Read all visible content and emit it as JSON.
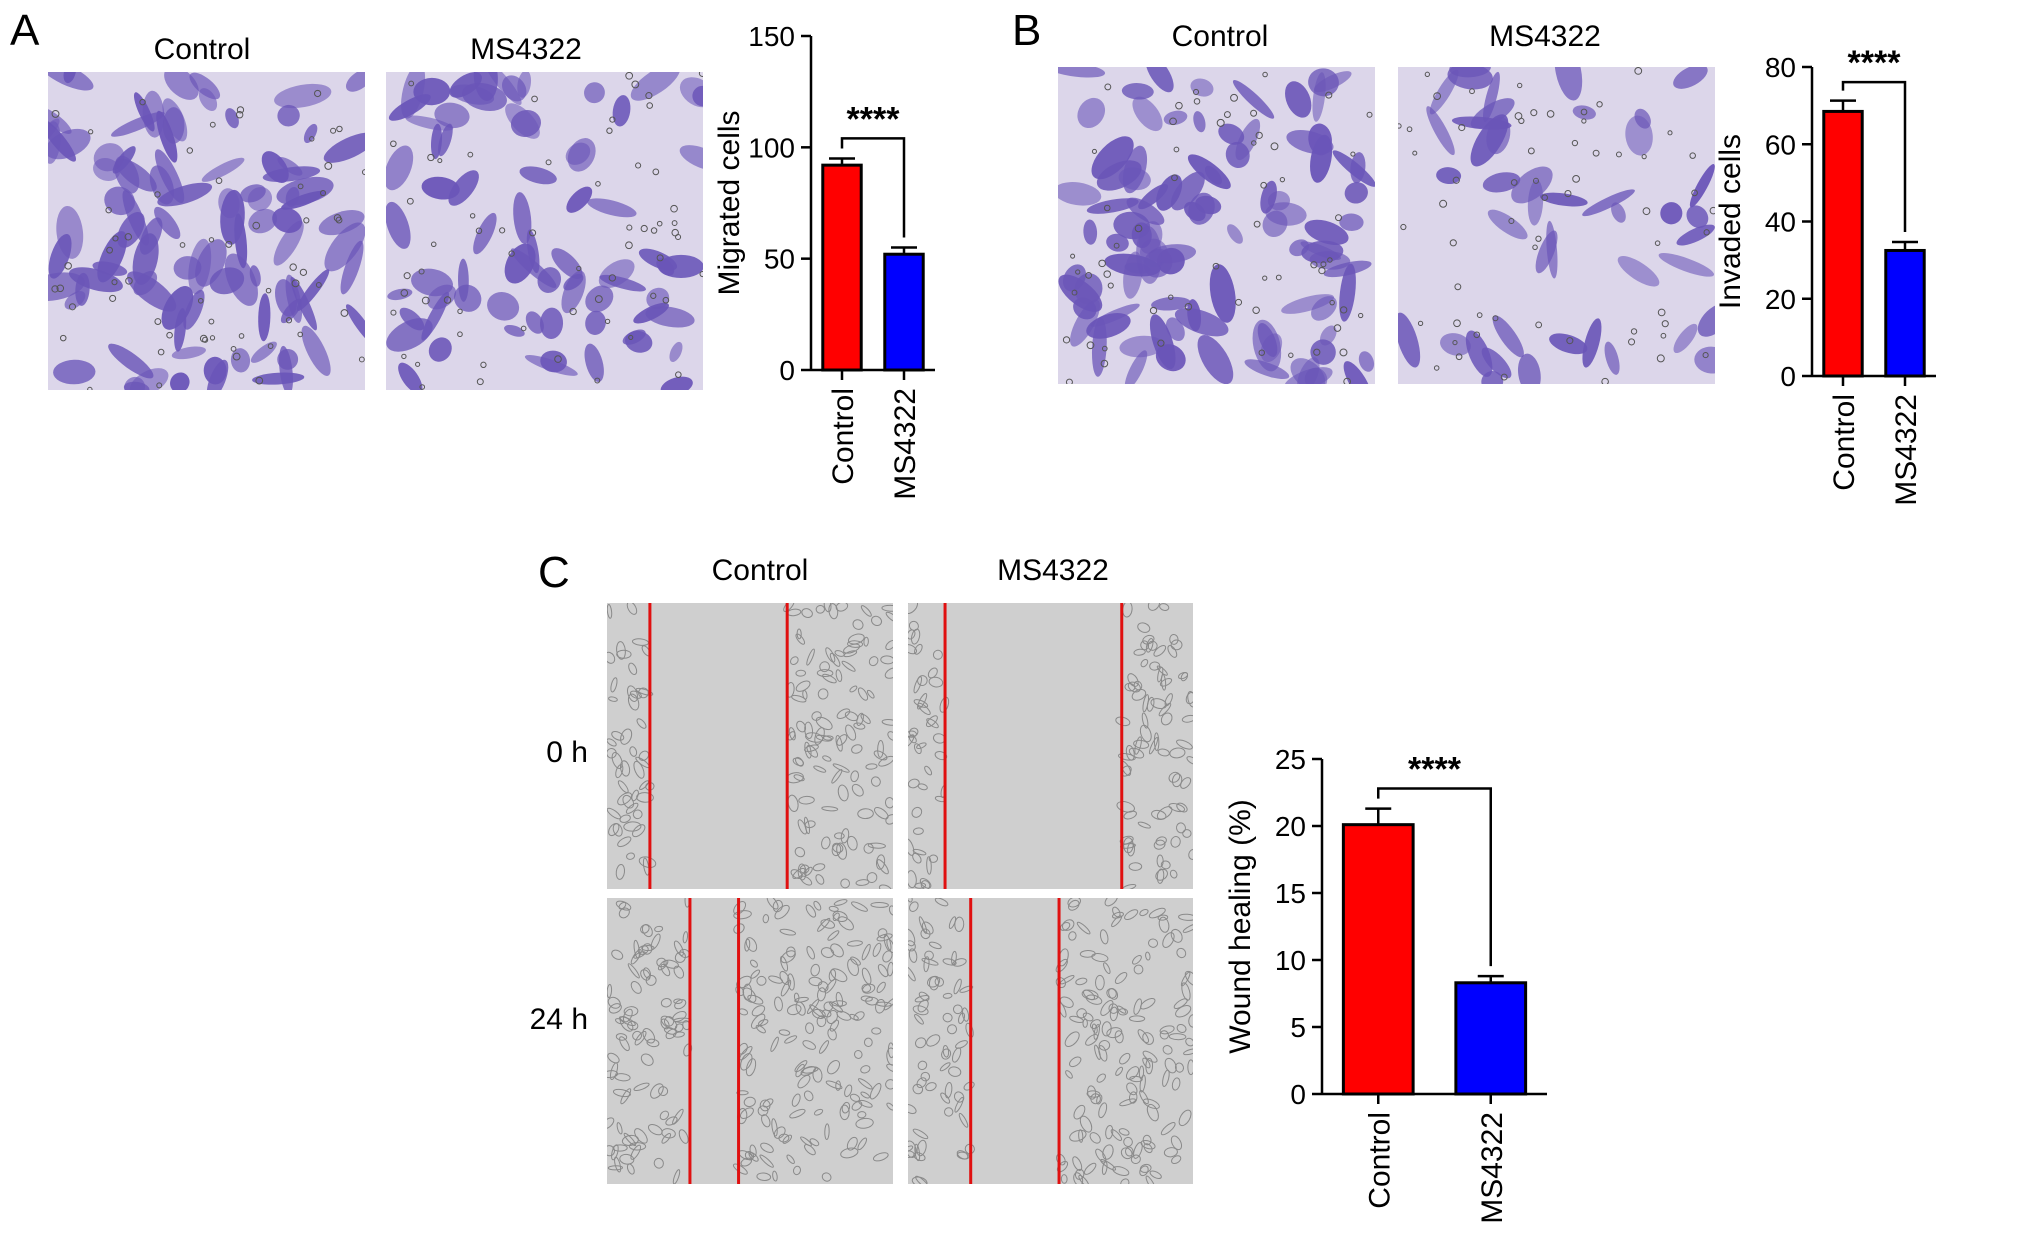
{
  "panels": {
    "A": {
      "letter": "A",
      "image_titles": [
        "Control",
        "MS4322"
      ],
      "chart_index": 0
    },
    "B": {
      "letter": "B",
      "image_titles": [
        "Control",
        "MS4322"
      ],
      "chart_index": 1
    },
    "C": {
      "letter": "C",
      "image_titles": [
        "Control",
        "MS4322"
      ],
      "row_labels": [
        "0 h",
        "24 h"
      ],
      "chart_index": 2
    }
  },
  "colors": {
    "control": "#ff0000",
    "ms4322": "#0000ff",
    "stain": "#6a55b8",
    "wound_line": "#e01010"
  },
  "chart_data": [
    {
      "type": "bar",
      "categories": [
        "Control",
        "MS4322"
      ],
      "values": [
        92,
        52
      ],
      "errors": [
        3,
        3
      ],
      "title": "",
      "xlabel": "",
      "ylabel": "Migrated cells",
      "ylim": [
        0,
        150
      ],
      "yticks": [
        0,
        50,
        100,
        150
      ],
      "significance": "****",
      "bar_colors": [
        "#ff0000",
        "#0000ff"
      ]
    },
    {
      "type": "bar",
      "categories": [
        "Control",
        "MS4322"
      ],
      "values": [
        68.5,
        32.5
      ],
      "errors": [
        2.8,
        2.2
      ],
      "title": "",
      "xlabel": "",
      "ylabel": "Invaded cells",
      "ylim": [
        0,
        80
      ],
      "yticks": [
        0,
        20,
        40,
        60,
        80
      ],
      "significance": "****",
      "bar_colors": [
        "#ff0000",
        "#0000ff"
      ]
    },
    {
      "type": "bar",
      "categories": [
        "Control",
        "MS4322"
      ],
      "values": [
        20.1,
        8.3
      ],
      "errors": [
        1.2,
        0.5
      ],
      "title": "",
      "xlabel": "",
      "ylabel": "Wound healing (%)",
      "ylim": [
        0,
        25
      ],
      "yticks": [
        0,
        5,
        10,
        15,
        20,
        25
      ],
      "significance": "****",
      "bar_colors": [
        "#ff0000",
        "#0000ff"
      ]
    }
  ]
}
